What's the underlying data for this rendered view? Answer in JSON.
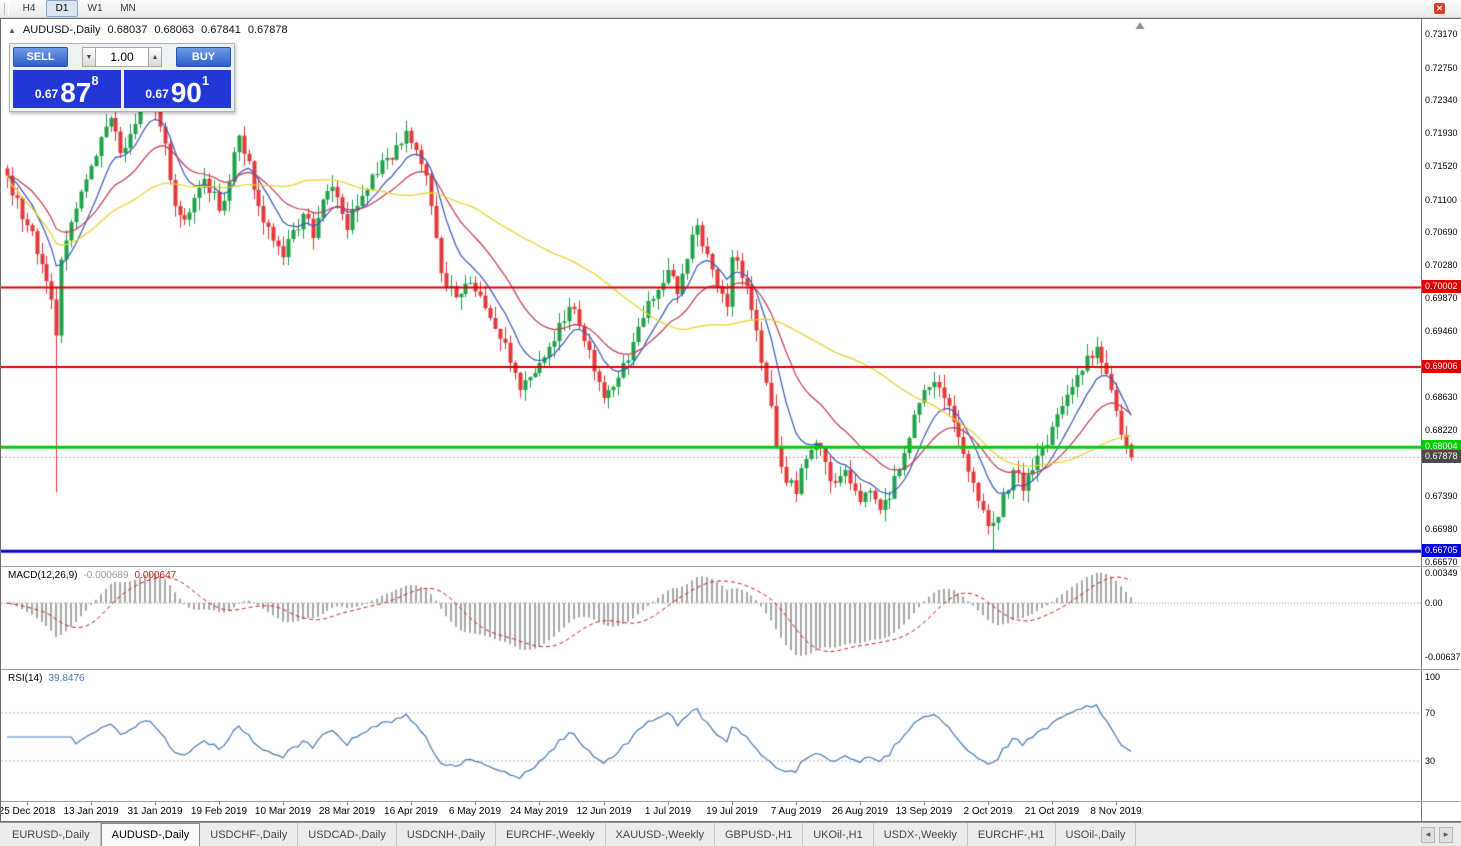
{
  "toolbar": {
    "timeframes": [
      "H4",
      "D1",
      "W1",
      "MN"
    ],
    "active_timeframe": "D1",
    "close_glyph": "r"
  },
  "chart_header": {
    "collapse_icon": "▲",
    "symbol": "AUDUSD-,Daily",
    "open": "0.68037",
    "high": "0.68063",
    "low": "0.67841",
    "close": "0.67878"
  },
  "one_click": {
    "sell_label": "SELL",
    "buy_label": "BUY",
    "volume": "1.00",
    "spinner_down": "▼",
    "spinner_up": "▲",
    "sell_price": {
      "base": "0.67",
      "big": "87",
      "sup": "8"
    },
    "buy_price": {
      "base": "0.67",
      "big": "90",
      "sup": "1"
    }
  },
  "price_axis": {
    "ticks": [
      {
        "label": "0.73170",
        "price": 0.7317
      },
      {
        "label": "0.72750",
        "price": 0.7275
      },
      {
        "label": "0.72340",
        "price": 0.7234
      },
      {
        "label": "0.71930",
        "price": 0.7193
      },
      {
        "label": "0.71520",
        "price": 0.7152
      },
      {
        "label": "0.71100",
        "price": 0.711
      },
      {
        "label": "0.70690",
        "price": 0.7069
      },
      {
        "label": "0.70280",
        "price": 0.7028
      },
      {
        "label": "0.69870",
        "price": 0.6987
      },
      {
        "label": "0.69460",
        "price": 0.6946
      },
      {
        "label": "0.68630",
        "price": 0.6863
      },
      {
        "label": "0.68220",
        "price": 0.6822
      },
      {
        "label": "0.67390",
        "price": 0.6739
      },
      {
        "label": "0.66980",
        "price": 0.6698
      },
      {
        "label": "0.66570",
        "price": 0.6657
      }
    ]
  },
  "hlines": [
    {
      "price": 0.70002,
      "label": "0.70002",
      "color": "#dd0000",
      "width": 2
    },
    {
      "price": 0.69006,
      "label": "0.69006",
      "color": "#dd0000",
      "width": 2
    },
    {
      "price": 0.68004,
      "label": "0.68004",
      "color": "#00cc00",
      "width": 3
    },
    {
      "price": 0.66705,
      "label": "0.66705",
      "color": "#0000dd",
      "width": 3
    }
  ],
  "current_price": {
    "price": 0.67878,
    "label": "0.67878",
    "color": "#4a4a4a"
  },
  "macd": {
    "label": "MACD(12,26,9)",
    "value_main": "-0.000689",
    "value_signal": "0.000647",
    "ticks": [
      {
        "label": "0.00349",
        "value": 0.00349
      },
      {
        "label": "0.00",
        "value": 0
      },
      {
        "label": "-0.00637",
        "value": -0.00637
      }
    ]
  },
  "rsi": {
    "label": "RSI(14)",
    "value": "39.8476",
    "period": 14,
    "levels": [
      70,
      30
    ],
    "ticks": [
      {
        "label": "100",
        "value": 100
      },
      {
        "label": "70",
        "value": 70
      },
      {
        "label": "30",
        "value": 30
      }
    ]
  },
  "date_axis": {
    "labels": [
      {
        "text": "25 Dec 2018",
        "bar": 4
      },
      {
        "text": "13 Jan 2019",
        "bar": 17
      },
      {
        "text": "31 Jan 2019",
        "bar": 30
      },
      {
        "text": "19 Feb 2019",
        "bar": 43
      },
      {
        "text": "10 Mar 2019",
        "bar": 56
      },
      {
        "text": "28 Mar 2019",
        "bar": 69
      },
      {
        "text": "16 Apr 2019",
        "bar": 82
      },
      {
        "text": "6 May 2019",
        "bar": 95
      },
      {
        "text": "24 May 2019",
        "bar": 108
      },
      {
        "text": "12 Jun 2019",
        "bar": 121
      },
      {
        "text": "1 Jul 2019",
        "bar": 134
      },
      {
        "text": "19 Jul 2019",
        "bar": 147
      },
      {
        "text": "7 Aug 2019",
        "bar": 160
      },
      {
        "text": "26 Aug 2019",
        "bar": 173
      },
      {
        "text": "13 Sep 2019",
        "bar": 186
      },
      {
        "text": "2 Oct 2019",
        "bar": 199
      },
      {
        "text": "21 Oct 2019",
        "bar": 212
      },
      {
        "text": "8 Nov 2019",
        "bar": 225
      }
    ]
  },
  "tabs": [
    {
      "label": "EURUSD-,Daily",
      "active": false
    },
    {
      "label": "AUDUSD-,Daily",
      "active": true
    },
    {
      "label": "USDCHF-,Daily",
      "active": false
    },
    {
      "label": "USDCAD-,Daily",
      "active": false
    },
    {
      "label": "USDCNH-,Daily",
      "active": false
    },
    {
      "label": "EURCHF-,Weekly",
      "active": false
    },
    {
      "label": "XAUUSD-,Weekly",
      "active": false
    },
    {
      "label": "GBPUSD-,H1",
      "active": false
    },
    {
      "label": "UKOil-,H1",
      "active": false
    },
    {
      "label": "USDX-,Weekly",
      "active": false
    },
    {
      "label": "EURCHF-,H1",
      "active": false
    },
    {
      "label": "USOil-,Daily",
      "active": false
    }
  ],
  "tab_scroll": {
    "left": "◂",
    "right": "▸"
  },
  "chart_data": {
    "type": "candlestick",
    "symbol": "AUDUSD",
    "timeframe": "Daily",
    "title": "AUDUSD-,Daily",
    "bars": 229,
    "ylim": [
      0.665,
      0.733
    ],
    "y_top_price": 0.7317,
    "y_bottom_price": 0.6657,
    "noise_seed": 7,
    "noise_amp": 0.0011,
    "wick_amp": 0.0016,
    "colors": {
      "up": "#1fa24a",
      "down": "#e23a3a",
      "macd_hist": "#a8a8a8",
      "macd_signal": "#cc2020",
      "rsi_line": "#4a7ab5",
      "level_line": "#b8b8b8",
      "bid_line": "#aaaaaa",
      "shift_marker": "#909090"
    },
    "ma": [
      {
        "type": "ema",
        "period": 9,
        "color": "#3a57c4"
      },
      {
        "type": "ema",
        "period": 21,
        "color": "#c43a50"
      },
      {
        "type": "sma",
        "period": 50,
        "color": "#e8d22a"
      }
    ],
    "macd_params": {
      "fast": 12,
      "slow": 26,
      "signal": 9
    },
    "price_anchors": [
      [
        0,
        0.714
      ],
      [
        2,
        0.7112
      ],
      [
        4,
        0.7078
      ],
      [
        6,
        0.7042
      ],
      [
        8,
        0.7008
      ],
      [
        9,
        0.6985
      ],
      [
        10,
        0.694
      ],
      [
        11,
        0.7035
      ],
      [
        13,
        0.7082
      ],
      [
        15,
        0.712
      ],
      [
        17,
        0.7152
      ],
      [
        19,
        0.7188
      ],
      [
        21,
        0.7212
      ],
      [
        23,
        0.7168
      ],
      [
        25,
        0.7192
      ],
      [
        27,
        0.7232
      ],
      [
        29,
        0.724
      ],
      [
        30,
        0.7222
      ],
      [
        32,
        0.718
      ],
      [
        34,
        0.7102
      ],
      [
        36,
        0.7085
      ],
      [
        38,
        0.7112
      ],
      [
        40,
        0.7136
      ],
      [
        43,
        0.7096
      ],
      [
        45,
        0.7132
      ],
      [
        47,
        0.719
      ],
      [
        49,
        0.7158
      ],
      [
        51,
        0.7102
      ],
      [
        53,
        0.7076
      ],
      [
        56,
        0.7038
      ],
      [
        58,
        0.7072
      ],
      [
        60,
        0.7092
      ],
      [
        62,
        0.7062
      ],
      [
        64,
        0.711
      ],
      [
        66,
        0.7126
      ],
      [
        68,
        0.7092
      ],
      [
        69,
        0.7072
      ],
      [
        71,
        0.7102
      ],
      [
        73,
        0.7122
      ],
      [
        75,
        0.7142
      ],
      [
        77,
        0.7162
      ],
      [
        79,
        0.7178
      ],
      [
        81,
        0.7196
      ],
      [
        83,
        0.7172
      ],
      [
        85,
        0.714
      ],
      [
        86,
        0.7102
      ],
      [
        87,
        0.7062
      ],
      [
        88,
        0.7018
      ],
      [
        90,
        0.7002
      ],
      [
        92,
        0.6992
      ],
      [
        94,
        0.7006
      ],
      [
        96,
        0.699
      ],
      [
        98,
        0.6962
      ],
      [
        100,
        0.6936
      ],
      [
        102,
        0.6906
      ],
      [
        104,
        0.6872
      ],
      [
        106,
        0.6888
      ],
      [
        108,
        0.6906
      ],
      [
        110,
        0.6926
      ],
      [
        112,
        0.6956
      ],
      [
        114,
        0.6976
      ],
      [
        116,
        0.6952
      ],
      [
        118,
        0.6922
      ],
      [
        120,
        0.6882
      ],
      [
        121,
        0.6862
      ],
      [
        123,
        0.6876
      ],
      [
        125,
        0.6906
      ],
      [
        127,
        0.6932
      ],
      [
        129,
        0.6962
      ],
      [
        131,
        0.6986
      ],
      [
        133,
        0.7006
      ],
      [
        134,
        0.7022
      ],
      [
        136,
        0.6992
      ],
      [
        138,
        0.7036
      ],
      [
        140,
        0.7078
      ],
      [
        142,
        0.7042
      ],
      [
        144,
        0.7002
      ],
      [
        146,
        0.6976
      ],
      [
        147,
        0.7038
      ],
      [
        149,
        0.7012
      ],
      [
        151,
        0.6972
      ],
      [
        153,
        0.6906
      ],
      [
        155,
        0.6852
      ],
      [
        156,
        0.6802
      ],
      [
        157,
        0.6776
      ],
      [
        158,
        0.6756
      ],
      [
        160,
        0.6742
      ],
      [
        162,
        0.6786
      ],
      [
        164,
        0.6806
      ],
      [
        166,
        0.6782
      ],
      [
        168,
        0.6756
      ],
      [
        170,
        0.6772
      ],
      [
        172,
        0.6746
      ],
      [
        173,
        0.6732
      ],
      [
        175,
        0.6746
      ],
      [
        177,
        0.6722
      ],
      [
        179,
        0.6736
      ],
      [
        181,
        0.6772
      ],
      [
        183,
        0.6812
      ],
      [
        185,
        0.6856
      ],
      [
        186,
        0.6872
      ],
      [
        188,
        0.6882
      ],
      [
        190,
        0.6862
      ],
      [
        192,
        0.6832
      ],
      [
        194,
        0.6792
      ],
      [
        196,
        0.6756
      ],
      [
        198,
        0.6722
      ],
      [
        199,
        0.6702
      ],
      [
        200,
        0.6706
      ],
      [
        202,
        0.6742
      ],
      [
        204,
        0.6772
      ],
      [
        206,
        0.6746
      ],
      [
        208,
        0.6772
      ],
      [
        210,
        0.6802
      ],
      [
        212,
        0.6826
      ],
      [
        214,
        0.6852
      ],
      [
        216,
        0.6876
      ],
      [
        218,
        0.6896
      ],
      [
        220,
        0.6912
      ],
      [
        221,
        0.6926
      ],
      [
        222,
        0.6906
      ],
      [
        223,
        0.6892
      ],
      [
        224,
        0.6872
      ],
      [
        225,
        0.6846
      ],
      [
        226,
        0.6816
      ],
      [
        227,
        0.6802
      ],
      [
        228,
        0.67878
      ]
    ],
    "special": {
      "flash_crash_bar": 10,
      "flash_crash_low": 0.6744,
      "spike_low_bar": 200,
      "spike_low": 0.66705,
      "last_bar": {
        "open": 0.68037,
        "high": 0.68063,
        "low": 0.67841,
        "close": 0.67878
      }
    }
  }
}
